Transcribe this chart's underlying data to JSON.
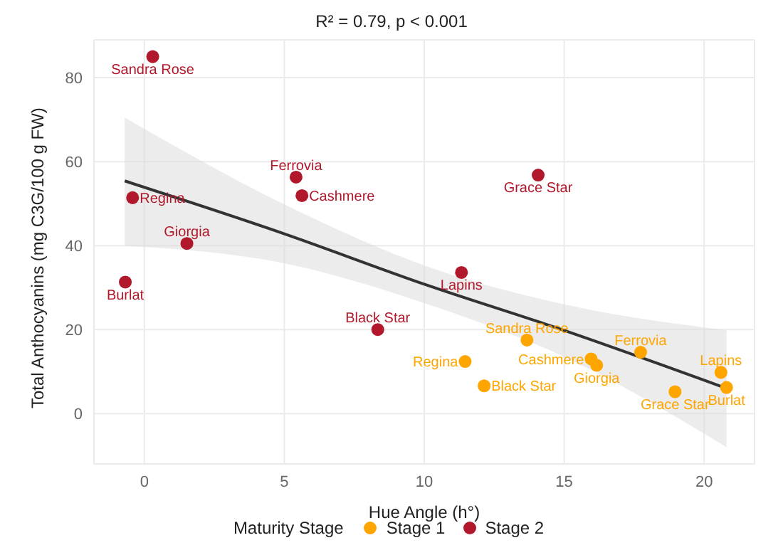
{
  "chart_data": {
    "type": "scatter",
    "title": "R² = 0.79, p < 0.001",
    "xlabel": "Hue Angle (h°)",
    "ylabel": "Total Anthocyanins (mg C3G/100 g FW)",
    "legend_title": "Maturity Stage",
    "legend": "bottom",
    "grid": true,
    "marker": "circle",
    "xlim": [
      -1.8,
      21.8
    ],
    "ylim": [
      -12,
      89
    ],
    "xticks": [
      0,
      5,
      10,
      15,
      20
    ],
    "yticks": [
      0,
      20,
      40,
      60,
      80
    ],
    "series": [
      {
        "name": "Stage 1",
        "color": "#ffa500",
        "x": [
          13.67,
          11.46,
          12.14,
          15.96,
          16.16,
          17.73,
          18.96,
          20.6,
          20.8
        ],
        "values": [
          17.5,
          12.4,
          6.6,
          13.0,
          11.5,
          14.6,
          5.2,
          9.8,
          6.2
        ]
      },
      {
        "name": "Stage 2",
        "color": "#b2182b",
        "x": [
          0.3,
          -0.42,
          1.52,
          -0.68,
          5.42,
          5.63,
          14.07,
          11.33,
          8.34
        ],
        "values": [
          85,
          51.4,
          40.5,
          31.3,
          56.3,
          51.9,
          56.8,
          33.6,
          20
        ]
      },
      {
        "type": "line",
        "marker": "none",
        "color": "#333333",
        "x": [
          -0.7,
          5,
          10,
          15,
          20.8
        ],
        "values": [
          55.4,
          42.8,
          30.8,
          19.8,
          6
        ],
        "lower": [
          40,
          35.8,
          26.3,
          13.5,
          -8
        ],
        "upper": [
          70.5,
          49.8,
          35.3,
          26,
          19.8
        ]
      }
    ],
    "annotations": [
      {
        "text": "Sandra Rose",
        "x": 13.67,
        "y": 17.5
      },
      {
        "text": "Regina",
        "x": 11.46,
        "y": 12.4
      },
      {
        "text": "Black Star",
        "x": 12.14,
        "y": 6.6
      },
      {
        "text": "Cashmere",
        "x": 15.96,
        "y": 13.0
      },
      {
        "text": "Giorgia",
        "x": 16.16,
        "y": 11.5
      },
      {
        "text": "Ferrovia",
        "x": 17.73,
        "y": 14.6
      },
      {
        "text": "Grace Star",
        "x": 18.96,
        "y": 5.2
      },
      {
        "text": "Lapins",
        "x": 20.6,
        "y": 9.8
      },
      {
        "text": "Burlat",
        "x": 20.8,
        "y": 6.2
      },
      {
        "text": "Sandra Rose",
        "x": 0.3,
        "y": 85
      },
      {
        "text": "Regina",
        "x": -0.42,
        "y": 51.4
      },
      {
        "text": "Giorgia",
        "x": 1.52,
        "y": 40.5
      },
      {
        "text": "Burlat",
        "x": -0.68,
        "y": 31.3
      },
      {
        "text": "Ferrovia",
        "x": 5.42,
        "y": 56.3
      },
      {
        "text": "Cashmere",
        "x": 5.63,
        "y": 51.9
      },
      {
        "text": "Grace Star",
        "x": 14.07,
        "y": 56.8
      },
      {
        "text": "Lapins",
        "x": 11.33,
        "y": 33.6
      },
      {
        "text": "Black Star",
        "x": 8.34,
        "y": 20
      }
    ]
  }
}
